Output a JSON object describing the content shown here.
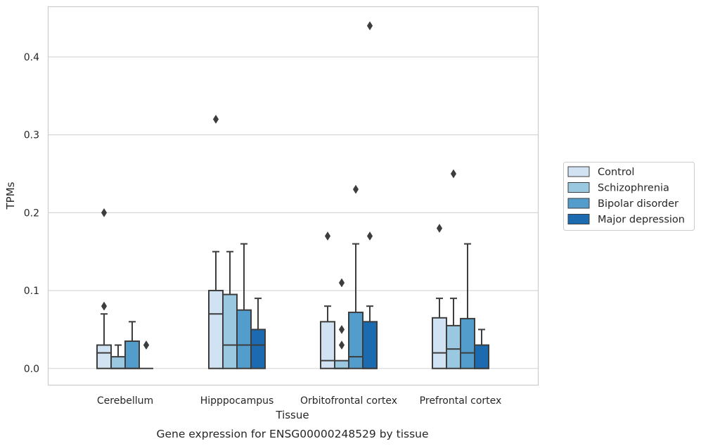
{
  "chart_data": {
    "type": "box",
    "caption": "Gene expression for ENSG00000248529 by tissue",
    "xlabel": "Tissue",
    "ylabel": "TPMs",
    "ylim": [
      -0.021,
      0.465
    ],
    "yticks": [
      0.0,
      0.1,
      0.2,
      0.3,
      0.4
    ],
    "ytick_labels": [
      "0.0",
      "0.1",
      "0.2",
      "0.3",
      "0.4"
    ],
    "grid": "horizontal",
    "legend_position": "right",
    "categories": [
      "Cerebellum",
      "Hipppocampus",
      "Orbitofrontal cortex",
      "Prefrontal cortex"
    ],
    "series": [
      {
        "name": "Control",
        "color": "#d1e2f2",
        "boxes": [
          {
            "q1": 0.0,
            "median": 0.02,
            "q3": 0.03,
            "whisker_low": 0.0,
            "whisker_high": 0.07,
            "outliers": [
              0.08,
              0.2
            ]
          },
          {
            "q1": 0.0,
            "median": 0.07,
            "q3": 0.1,
            "whisker_low": 0.0,
            "whisker_high": 0.15,
            "outliers": [
              0.32
            ]
          },
          {
            "q1": 0.0,
            "median": 0.01,
            "q3": 0.06,
            "whisker_low": 0.0,
            "whisker_high": 0.08,
            "outliers": [
              0.17
            ]
          },
          {
            "q1": 0.0,
            "median": 0.02,
            "q3": 0.065,
            "whisker_low": 0.0,
            "whisker_high": 0.09,
            "outliers": [
              0.18
            ]
          }
        ]
      },
      {
        "name": "Schizophrenia",
        "color": "#9ac8e0",
        "boxes": [
          {
            "q1": 0.0,
            "median": 0.0,
            "q3": 0.015,
            "whisker_low": 0.0,
            "whisker_high": 0.03,
            "outliers": []
          },
          {
            "q1": 0.0,
            "median": 0.03,
            "q3": 0.095,
            "whisker_low": 0.0,
            "whisker_high": 0.15,
            "outliers": []
          },
          {
            "q1": 0.0,
            "median": 0.0,
            "q3": 0.01,
            "whisker_low": 0.0,
            "whisker_high": 0.01,
            "outliers": [
              0.03,
              0.05,
              0.11
            ]
          },
          {
            "q1": 0.0,
            "median": 0.025,
            "q3": 0.055,
            "whisker_low": 0.0,
            "whisker_high": 0.09,
            "outliers": [
              0.25
            ]
          }
        ]
      },
      {
        "name": "Bipolar disorder",
        "color": "#529dcc",
        "boxes": [
          {
            "q1": 0.0,
            "median": 0.0,
            "q3": 0.035,
            "whisker_low": 0.0,
            "whisker_high": 0.06,
            "outliers": []
          },
          {
            "q1": 0.0,
            "median": 0.03,
            "q3": 0.075,
            "whisker_low": 0.0,
            "whisker_high": 0.16,
            "outliers": []
          },
          {
            "q1": 0.0,
            "median": 0.015,
            "q3": 0.072,
            "whisker_low": 0.0,
            "whisker_high": 0.16,
            "outliers": [
              0.23
            ]
          },
          {
            "q1": 0.0,
            "median": 0.02,
            "q3": 0.064,
            "whisker_low": 0.0,
            "whisker_high": 0.16,
            "outliers": []
          }
        ]
      },
      {
        "name": "Major depression",
        "color": "#1c6aaf",
        "boxes": [
          {
            "q1": 0.0,
            "median": 0.0,
            "q3": 0.0,
            "whisker_low": 0.0,
            "whisker_high": 0.0,
            "outliers": [
              0.03,
              0.03
            ]
          },
          {
            "q1": 0.0,
            "median": 0.03,
            "q3": 0.05,
            "whisker_low": 0.0,
            "whisker_high": 0.09,
            "outliers": []
          },
          {
            "q1": 0.0,
            "median": 0.0,
            "q3": 0.06,
            "whisker_low": 0.0,
            "whisker_high": 0.08,
            "outliers": [
              0.17,
              0.44
            ]
          },
          {
            "q1": 0.0,
            "median": 0.0,
            "q3": 0.03,
            "whisker_low": 0.0,
            "whisker_high": 0.05,
            "outliers": []
          }
        ]
      }
    ]
  }
}
